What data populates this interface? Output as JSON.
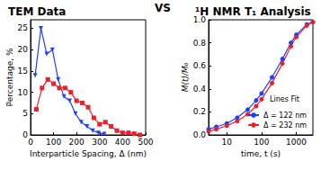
{
  "annotations": [
    "VS"
  ],
  "chart_data": [
    {
      "type": "line",
      "title": "TEM Data",
      "x_label": "Interparticle Spacing, Δ (nm)",
      "y_label": "Percentage, %",
      "xlim": [
        0,
        500
      ],
      "xticks": [
        0,
        100,
        200,
        300,
        400,
        500
      ],
      "ylim": [
        0,
        27
      ],
      "yticks": [
        0,
        5,
        10,
        15,
        20,
        25
      ],
      "grid": false,
      "series": [
        {
          "color": "#1f3fff",
          "marker": "triangle-down",
          "line_style": "solid",
          "x": [
            20,
            45,
            70,
            95,
            120,
            145,
            170,
            195,
            220,
            245,
            270,
            295,
            320
          ],
          "values": [
            14,
            25,
            19,
            20,
            13,
            9,
            8,
            5,
            3,
            2,
            1,
            0.5,
            0.2
          ]
        },
        {
          "color": "#e8202a",
          "marker": "square",
          "line_style": "solid",
          "x": [
            25,
            50,
            75,
            100,
            125,
            150,
            175,
            200,
            225,
            250,
            275,
            300,
            325,
            350,
            375,
            400,
            425,
            450,
            475
          ],
          "values": [
            6,
            11,
            13,
            12,
            11,
            11,
            10,
            8,
            7.5,
            6.5,
            4,
            2.5,
            3,
            2,
            1,
            0.5,
            0.5,
            0.3,
            0
          ]
        }
      ]
    },
    {
      "type": "line",
      "title": "¹H NMR T₁ Analysis",
      "x_label": "time, t (s)",
      "y_label": "M(t)/M₀",
      "log": "x",
      "xlim": [
        3,
        3000
      ],
      "xticks": [
        10,
        100,
        1000
      ],
      "ylim": [
        0,
        1
      ],
      "yticks": [
        {
          "value": 0,
          "label": "0.0"
        },
        0.2,
        0.4,
        0.6,
        0.8,
        {
          "value": 1,
          "label": "1.0"
        }
      ],
      "grid": false,
      "legend": "lower right",
      "annotations": [
        "Lines Fit"
      ],
      "series": [
        {
          "name": "Δ = 122 nm",
          "color": "#1f3fff",
          "marker": "circle",
          "line_style": "solid",
          "x": [
            3,
            5,
            10,
            20,
            40,
            70,
            100,
            200,
            400,
            700,
            1000,
            2000,
            3000
          ],
          "values": [
            0.05,
            0.07,
            0.1,
            0.15,
            0.22,
            0.3,
            0.36,
            0.5,
            0.66,
            0.8,
            0.87,
            0.96,
            0.98
          ]
        },
        {
          "name": "Δ = 232 nm",
          "color": "#e8202a",
          "marker": "circle",
          "line_style": "solid",
          "x": [
            3,
            5,
            10,
            20,
            40,
            70,
            100,
            200,
            400,
            700,
            1000,
            2000,
            3000
          ],
          "values": [
            0.03,
            0.05,
            0.08,
            0.12,
            0.18,
            0.25,
            0.31,
            0.45,
            0.62,
            0.77,
            0.85,
            0.95,
            0.98
          ]
        }
      ]
    }
  ]
}
